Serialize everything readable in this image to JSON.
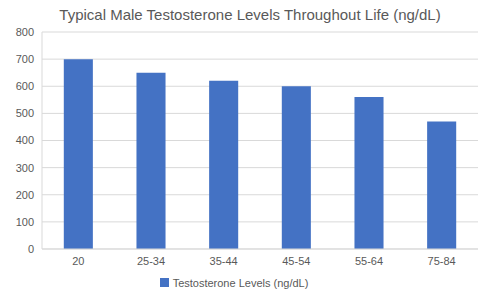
{
  "chart_data": {
    "type": "bar",
    "title": "Typical Male Testosterone Levels Throughout Life (ng/dL)",
    "categories": [
      "20",
      "25-34",
      "35-44",
      "45-54",
      "55-64",
      "75-84"
    ],
    "series": [
      {
        "name": "Testosterone Levels (ng/dL)",
        "color": "#4472c4",
        "values": [
          700,
          650,
          620,
          600,
          560,
          470
        ]
      }
    ],
    "ylim": [
      0,
      800
    ],
    "yticks": [
      0,
      100,
      200,
      300,
      400,
      500,
      600,
      700,
      800
    ],
    "grid": true,
    "legend": "bottom"
  }
}
